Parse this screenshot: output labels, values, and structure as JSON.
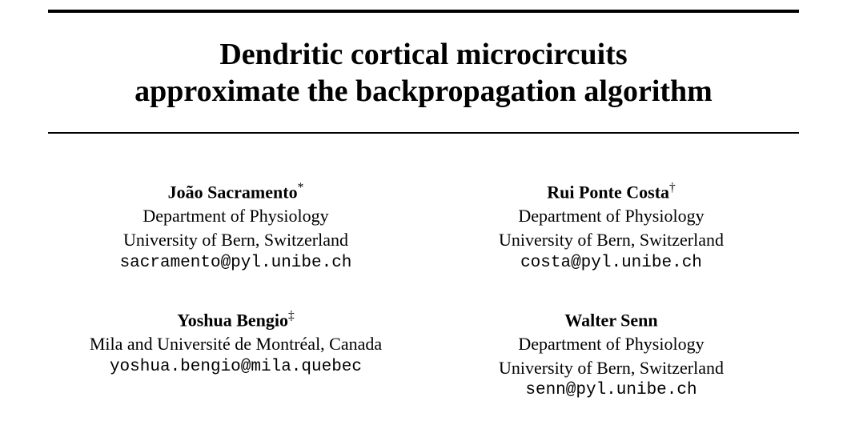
{
  "title": {
    "line1": "Dendritic cortical microcircuits",
    "line2": "approximate the backpropagation algorithm"
  },
  "authors": [
    {
      "name": "João Sacramento",
      "mark": "*",
      "affil1": "Department of Physiology",
      "affil2": "University of Bern, Switzerland",
      "email": "sacramento@pyl.unibe.ch"
    },
    {
      "name": "Rui Ponte Costa",
      "mark": "†",
      "affil1": "Department of Physiology",
      "affil2": "University of Bern, Switzerland",
      "email": "costa@pyl.unibe.ch"
    },
    {
      "name": "Yoshua Bengio",
      "mark": "‡",
      "affil1": "Mila and Université de Montréal, Canada",
      "affil2": "",
      "email": "yoshua.bengio@mila.quebec"
    },
    {
      "name": "Walter Senn",
      "mark": "",
      "affil1": "Department of Physiology",
      "affil2": "University of Bern, Switzerland",
      "email": "senn@pyl.unibe.ch"
    }
  ],
  "colors": {
    "background": "#ffffff",
    "text": "#000000",
    "rule": "#000000"
  },
  "typography": {
    "title_fontsize": 38,
    "author_fontsize": 22,
    "email_fontsize": 21,
    "font_family": "Times New Roman"
  }
}
